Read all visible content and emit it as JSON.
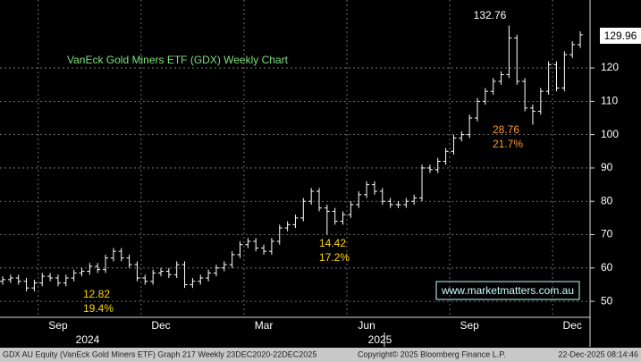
{
  "chart_data": {
    "type": "ohlc",
    "title": "VanEck Gold Miners ETF (GDX) Weekly Chart",
    "color": "#ffffff",
    "title_color": "#7de07d",
    "categories": [
      null,
      null,
      null,
      null,
      null,
      null,
      null,
      "Sep",
      null,
      null,
      null,
      null,
      null,
      null,
      null,
      null,
      null,
      null,
      null,
      null,
      "Dec",
      null,
      null,
      null,
      null,
      null,
      null,
      null,
      null,
      null,
      null,
      null,
      null,
      "Mar",
      null,
      null,
      null,
      null,
      null,
      null,
      null,
      null,
      null,
      null,
      null,
      null,
      "Jun",
      null,
      null,
      null,
      null,
      null,
      null,
      null,
      null,
      null,
      null,
      null,
      null,
      "Sep",
      null,
      null,
      null,
      null,
      null,
      null,
      null,
      null,
      null,
      null,
      null,
      null,
      "Dec",
      null
    ],
    "open": [
      56,
      56.5,
      57,
      56,
      54,
      55.5,
      57.5,
      57,
      55.5,
      57,
      58.5,
      59,
      60.5,
      59.5,
      63,
      65,
      63,
      61,
      57,
      56,
      58.5,
      59,
      58,
      61,
      55,
      56,
      57,
      58.5,
      60,
      61,
      64,
      67,
      68,
      66,
      65,
      68,
      72,
      73,
      75,
      80,
      83,
      78,
      77,
      74,
      76,
      79,
      82,
      85,
      83,
      80,
      79,
      79,
      80,
      81,
      90,
      89.5,
      92,
      95,
      99,
      100,
      105,
      110,
      113,
      116,
      118,
      129,
      116,
      108,
      107,
      113,
      121,
      114,
      124,
      127
    ],
    "high": [
      57.5,
      58,
      58,
      57,
      56.5,
      58.5,
      58.5,
      58,
      58,
      59.5,
      60,
      61.5,
      61.5,
      64,
      66,
      66,
      64,
      62,
      58,
      59.5,
      60,
      60,
      62,
      62,
      57,
      58,
      59.5,
      61,
      62,
      65,
      68,
      69,
      69,
      67,
      69,
      73,
      74,
      76,
      81,
      84,
      84,
      79,
      78,
      77,
      80,
      83,
      86,
      86,
      84,
      81,
      80,
      81,
      82,
      91,
      91,
      93,
      96,
      100,
      101,
      106,
      111,
      114,
      117,
      119,
      132.76,
      130,
      117,
      109,
      114,
      122,
      122,
      125,
      128,
      131
    ],
    "low": [
      55,
      55.5,
      55,
      53,
      53,
      54.5,
      56,
      54.5,
      54.5,
      56,
      57.5,
      58,
      58.5,
      58.5,
      62,
      62,
      60,
      56,
      55,
      55,
      57.5,
      57,
      57,
      54,
      54,
      55,
      56,
      57.5,
      59,
      60,
      63,
      66,
      65,
      64,
      64,
      67,
      71,
      72,
      74,
      79,
      77,
      70,
      73,
      73,
      75,
      78,
      81,
      82,
      79,
      78,
      78,
      78,
      79,
      80,
      88.5,
      88.5,
      91,
      94,
      98,
      99,
      104,
      109,
      112,
      115,
      117,
      115,
      107,
      103,
      106,
      112,
      113,
      113,
      123,
      126
    ],
    "close": [
      56.5,
      57,
      56,
      54,
      55.5,
      57.5,
      57,
      55.5,
      57,
      58.5,
      59,
      60.5,
      59.5,
      63,
      65,
      63,
      61,
      57,
      56,
      58.5,
      59,
      58,
      61,
      55,
      56,
      57,
      58.5,
      60,
      61,
      64,
      67,
      68,
      66,
      65,
      68,
      72,
      73,
      75,
      80,
      83,
      78,
      77,
      74,
      76,
      79,
      82,
      85,
      83,
      80,
      79,
      79,
      80,
      81,
      90,
      89.5,
      92,
      95,
      99,
      100,
      105,
      110,
      113,
      116,
      118,
      129,
      116,
      108,
      107,
      113,
      121,
      114,
      124,
      127,
      129.96
    ],
    "ylim": [
      45.2,
      140.4
    ],
    "yticks": [
      50,
      60,
      70,
      80,
      90,
      100,
      110,
      120
    ],
    "grid": true,
    "year_labels": [
      "2024",
      "2025"
    ],
    "annotations": [
      {
        "lines": [
          "28.76",
          "21.7%"
        ],
        "color": "#ff9a2e"
      },
      {
        "lines": [
          "14.42",
          "17.2%"
        ],
        "color": "#ffd800"
      },
      {
        "lines": [
          "12.82",
          "19.4%"
        ],
        "color": "#ffd800"
      }
    ],
    "watermark": "www.marketmatters.com.au",
    "footer": {
      "left": "GDX AU Equity (VanEck Gold Miners ETF) Graph 217 Weekly 23DEC2020-22DEC2025",
      "center": "Copyright© 2025 Bloomberg Finance L.P.",
      "right": "22-Dec-2025 08:14:46"
    }
  }
}
